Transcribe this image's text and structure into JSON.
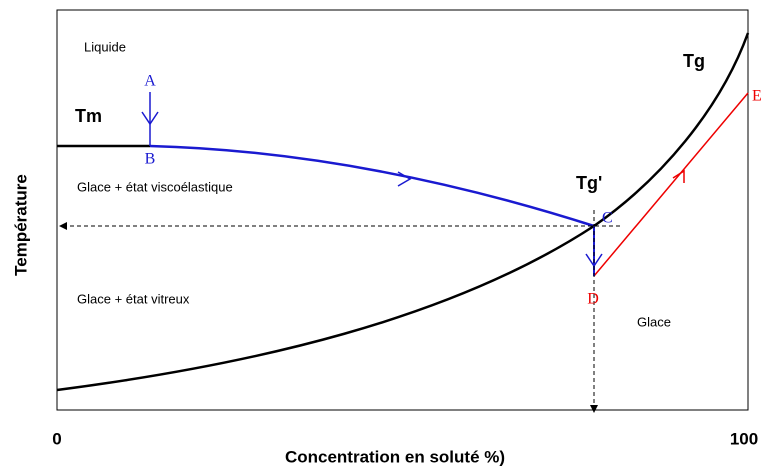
{
  "diagram": {
    "regions": {
      "liquid": "Liquide",
      "viscoelastic": "Glace + état viscoélastique",
      "vitreous": "Glace + état vitreux",
      "ice": "Glace"
    },
    "curves": {
      "tm": "Tm",
      "tg": "Tg",
      "tg_prime": "Tg'"
    },
    "points": {
      "a": "A",
      "b": "B",
      "c": "C",
      "d": "D",
      "e": "E"
    },
    "x_axis": {
      "label": "Concentration en soluté %)",
      "min_label": "0",
      "max_label": "100"
    },
    "y_axis": {
      "label": "Température"
    }
  }
}
